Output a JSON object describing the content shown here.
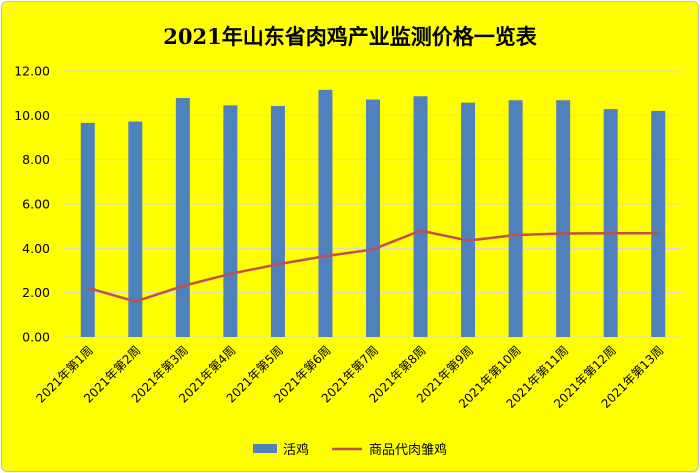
{
  "chart_data": {
    "type": "bar",
    "title": "2021年山东省肉鸡产业监测价格一览表",
    "categories": [
      "2021年第1周",
      "2021年第2周",
      "2021年第3周",
      "2021年第4周",
      "2021年第5周",
      "2021年第6周",
      "2021年第7周",
      "2021年第8周",
      "2021年第9周",
      "2021年第10周",
      "2021年第11周",
      "2021年第12周",
      "2021年第13周"
    ],
    "series": [
      {
        "name": "活鸡",
        "type": "bar",
        "color": "#4f81bd",
        "values": [
          9.66,
          9.72,
          10.78,
          10.45,
          10.42,
          11.15,
          10.71,
          10.86,
          10.57,
          10.68,
          10.68,
          10.28,
          10.2
        ]
      },
      {
        "name": "商品代肉雏鸡",
        "type": "line",
        "color": "#c0504d",
        "values": [
          2.22,
          1.6,
          2.3,
          2.85,
          3.28,
          3.65,
          3.95,
          4.8,
          4.35,
          4.6,
          4.67,
          4.68,
          4.68
        ]
      }
    ],
    "ylim": [
      0,
      12
    ],
    "yticks": [
      "0.00",
      "2.00",
      "4.00",
      "6.00",
      "8.00",
      "10.00",
      "12.00"
    ],
    "grid": true,
    "legend_position": "bottom",
    "background_color": "#ffff00"
  }
}
